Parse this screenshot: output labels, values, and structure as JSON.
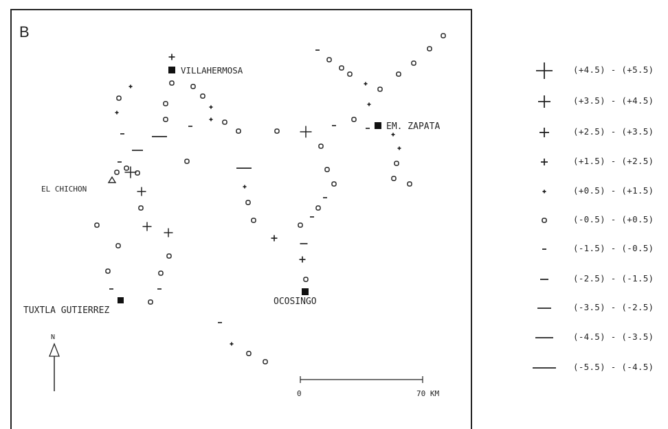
{
  "panel_label": "B",
  "cities": [
    {
      "name": "VILLAHERMOSA",
      "id": "villahermosa"
    },
    {
      "name": "EM. ZAPATA",
      "id": "em-zapata"
    },
    {
      "name": "OCOSINGO",
      "id": "ocosingo"
    },
    {
      "name": "TUXTLA GUTIERREZ",
      "id": "tuxtla-gutierrez"
    }
  ],
  "volcano": {
    "name": "EL CHICHON",
    "marker": "triangle"
  },
  "north_arrow": {
    "label": "N"
  },
  "scale_bar": {
    "start_label": "0",
    "end_label": "70 KM",
    "length_km": 70
  },
  "legend": {
    "items": [
      {
        "range": "(+4.5) - (+5.5)",
        "symbol": "plus",
        "level": 5
      },
      {
        "range": "(+3.5) - (+4.5)",
        "symbol": "plus",
        "level": 4
      },
      {
        "range": "(+2.5) - (+3.5)",
        "symbol": "plus",
        "level": 3
      },
      {
        "range": "(+1.5) - (+2.5)",
        "symbol": "plus",
        "level": 2
      },
      {
        "range": "(+0.5) - (+1.5)",
        "symbol": "plus",
        "level": 1
      },
      {
        "range": "(-0.5) - (+0.5)",
        "symbol": "circle",
        "level": 0
      },
      {
        "range": "(-1.5) - (-0.5)",
        "symbol": "minus",
        "level": -1
      },
      {
        "range": "(-2.5) - (-1.5)",
        "symbol": "minus",
        "level": -2
      },
      {
        "range": "(-3.5) - (-2.5)",
        "symbol": "minus",
        "level": -3
      },
      {
        "range": "(-4.5) - (-3.5)",
        "symbol": "minus",
        "level": -4
      },
      {
        "range": "(-5.5) - (-4.5)",
        "symbol": "minus",
        "level": -5
      }
    ]
  },
  "colors": {
    "ink": "#1a1a1a",
    "background": "#ffffff"
  }
}
